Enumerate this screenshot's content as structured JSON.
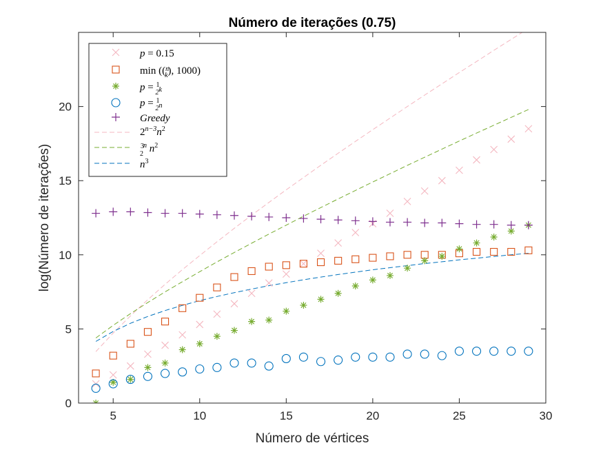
{
  "chart_data": {
    "type": "scatter",
    "title": "Número de iterações (0.75)",
    "xlabel": "Número de vértices",
    "ylabel": "log(Número de iterações)",
    "xlim": [
      3,
      30
    ],
    "ylim": [
      0,
      25
    ],
    "xticks": [
      5,
      10,
      15,
      20,
      25,
      30
    ],
    "yticks": [
      0,
      5,
      10,
      15,
      20
    ],
    "grid": false,
    "legend_position": "top-left",
    "x": [
      4,
      5,
      6,
      7,
      8,
      9,
      10,
      11,
      12,
      13,
      14,
      15,
      16,
      17,
      18,
      19,
      20,
      21,
      22,
      23,
      24,
      25,
      26,
      27,
      28,
      29
    ],
    "series": [
      {
        "name": "p = 0.15",
        "marker": "x",
        "color": "#f4b7c0",
        "values": [
          1.3,
          1.9,
          2.5,
          3.3,
          3.9,
          4.6,
          5.3,
          6.0,
          6.7,
          7.4,
          8.1,
          8.7,
          9.4,
          10.1,
          10.8,
          11.5,
          12.1,
          12.8,
          13.6,
          14.3,
          15.0,
          15.7,
          16.4,
          17.1,
          17.8,
          18.5
        ]
      },
      {
        "name": "min(C(n,k), 1000)",
        "marker": "square",
        "color": "#d95319",
        "values": [
          2.0,
          3.2,
          4.0,
          4.8,
          5.5,
          6.4,
          7.1,
          7.8,
          8.5,
          8.9,
          9.2,
          9.3,
          9.4,
          9.5,
          9.6,
          9.7,
          9.8,
          9.9,
          10.0,
          10.0,
          10.0,
          10.1,
          10.2,
          10.2,
          10.2,
          10.3
        ]
      },
      {
        "name": "p = 1/2^k",
        "marker": "asterisk",
        "color": "#77ac30",
        "values": [
          0.0,
          1.4,
          1.6,
          2.4,
          2.7,
          3.6,
          4.0,
          4.5,
          4.9,
          5.5,
          5.6,
          6.2,
          6.6,
          7.0,
          7.4,
          7.9,
          8.3,
          8.6,
          9.1,
          9.6,
          9.9,
          10.4,
          10.8,
          11.2,
          11.6,
          12.0
        ]
      },
      {
        "name": "p = 1/2^n",
        "marker": "circle",
        "color": "#0072bd",
        "values": [
          1.0,
          1.3,
          1.6,
          1.8,
          2.0,
          2.1,
          2.3,
          2.4,
          2.7,
          2.7,
          2.5,
          3.0,
          3.1,
          2.8,
          2.9,
          3.1,
          3.1,
          3.1,
          3.3,
          3.3,
          3.2,
          3.5,
          3.5,
          3.5,
          3.5,
          3.5
        ]
      },
      {
        "name": "Greedy",
        "marker": "plus",
        "color": "#7e2f8e",
        "values": [
          12.8,
          12.9,
          12.9,
          12.85,
          12.8,
          12.8,
          12.75,
          12.7,
          12.65,
          12.6,
          12.55,
          12.5,
          12.45,
          12.4,
          12.35,
          12.3,
          12.25,
          12.2,
          12.2,
          12.15,
          12.15,
          12.1,
          12.05,
          12.05,
          12.0,
          12.0
        ]
      },
      {
        "name": "2^(n-3) n^2",
        "marker": "dashed-line",
        "color": "#f4b7c0",
        "values": [
          3.47,
          4.72,
          5.88,
          6.97,
          8.01,
          9.0,
          9.95,
          10.88,
          11.79,
          12.67,
          13.53,
          14.38,
          15.21,
          16.04,
          16.85,
          17.65,
          18.44,
          19.22,
          20.0,
          20.77,
          21.53,
          22.29,
          23.04,
          23.79,
          24.53,
          25.27
        ]
      },
      {
        "name": "(3/2)^n n^2",
        "marker": "dashed-line",
        "color": "#77ac30",
        "values": [
          4.39,
          5.24,
          6.03,
          6.78,
          7.5,
          8.19,
          8.86,
          9.52,
          10.16,
          10.78,
          11.4,
          12.0,
          12.6,
          13.19,
          13.77,
          14.34,
          14.91,
          15.47,
          16.03,
          16.58,
          17.13,
          17.67,
          18.21,
          18.74,
          19.27,
          19.8
        ]
      },
      {
        "name": "n^3",
        "marker": "dashed-line",
        "color": "#0072bd",
        "values": [
          4.16,
          4.83,
          5.38,
          5.84,
          6.24,
          6.59,
          6.91,
          7.19,
          7.45,
          7.69,
          7.92,
          8.12,
          8.32,
          8.5,
          8.67,
          8.83,
          8.99,
          9.13,
          9.27,
          9.41,
          9.53,
          9.66,
          9.77,
          9.89,
          10.0,
          10.1
        ]
      }
    ]
  },
  "legend": [
    {
      "key": "p15",
      "text": "p = 0.15"
    },
    {
      "key": "min",
      "text": "min ((n k), 1000)"
    },
    {
      "key": "p2k",
      "text": "p = 1/2k"
    },
    {
      "key": "p2n",
      "text": "p = 1/2n"
    },
    {
      "key": "greedy",
      "text": "Greedy"
    },
    {
      "key": "c1",
      "text": "2n−3n2"
    },
    {
      "key": "c2",
      "text": "3/2 n n2"
    },
    {
      "key": "c3",
      "text": "n3"
    }
  ]
}
